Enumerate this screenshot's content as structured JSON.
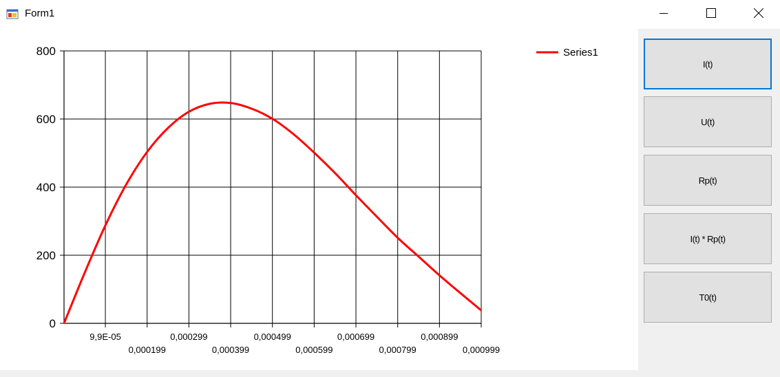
{
  "window": {
    "title": "Form1",
    "icons": {
      "app": "winforms-app-icon",
      "minimize": "minimize-icon",
      "maximize": "maximize-icon",
      "close": "close-icon"
    }
  },
  "buttons": [
    {
      "label": "I(t)",
      "focused": true
    },
    {
      "label": "U(t)",
      "focused": false
    },
    {
      "label": "Rp(t)",
      "focused": false
    },
    {
      "label": "I(t) * Rp(t)",
      "focused": false
    },
    {
      "label": "T0(t)",
      "focused": false
    }
  ],
  "chart_data": {
    "type": "line",
    "title": "",
    "xlabel": "",
    "ylabel": "",
    "xlim": [
      0,
      0.000999
    ],
    "ylim": [
      0,
      800
    ],
    "y_ticks": [
      "0",
      "200",
      "400",
      "600",
      "800"
    ],
    "x_ticks": [
      {
        "value": 9.9e-05,
        "label": "9,9E-05",
        "row": 0
      },
      {
        "value": 0.000199,
        "label": "0,000199",
        "row": 1
      },
      {
        "value": 0.000299,
        "label": "0,000299",
        "row": 0
      },
      {
        "value": 0.000399,
        "label": "0,000399",
        "row": 1
      },
      {
        "value": 0.000499,
        "label": "0,000499",
        "row": 0
      },
      {
        "value": 0.000599,
        "label": "0,000599",
        "row": 1
      },
      {
        "value": 0.000699,
        "label": "0,000699",
        "row": 0
      },
      {
        "value": 0.000799,
        "label": "0,000799",
        "row": 1
      },
      {
        "value": 0.000899,
        "label": "0,000899",
        "row": 0
      },
      {
        "value": 0.000999,
        "label": "0,000999",
        "row": 1
      }
    ],
    "grid": true,
    "legend": "top-right",
    "series": [
      {
        "name": "Series1",
        "color": "#ff0000",
        "x": [
          0,
          5e-05,
          0.0001,
          0.00015,
          0.0002,
          0.00025,
          0.0003,
          0.00035,
          0.0004,
          0.00045,
          0.0005,
          0.00055,
          0.0006,
          0.00065,
          0.0007,
          0.00075,
          0.0008,
          0.00085,
          0.0009,
          0.00095,
          0.000999
        ],
        "values": [
          0,
          150,
          290,
          410,
          505,
          575,
          622,
          645,
          647,
          630,
          600,
          555,
          500,
          440,
          375,
          312,
          250,
          195,
          140,
          88,
          38
        ]
      }
    ]
  }
}
